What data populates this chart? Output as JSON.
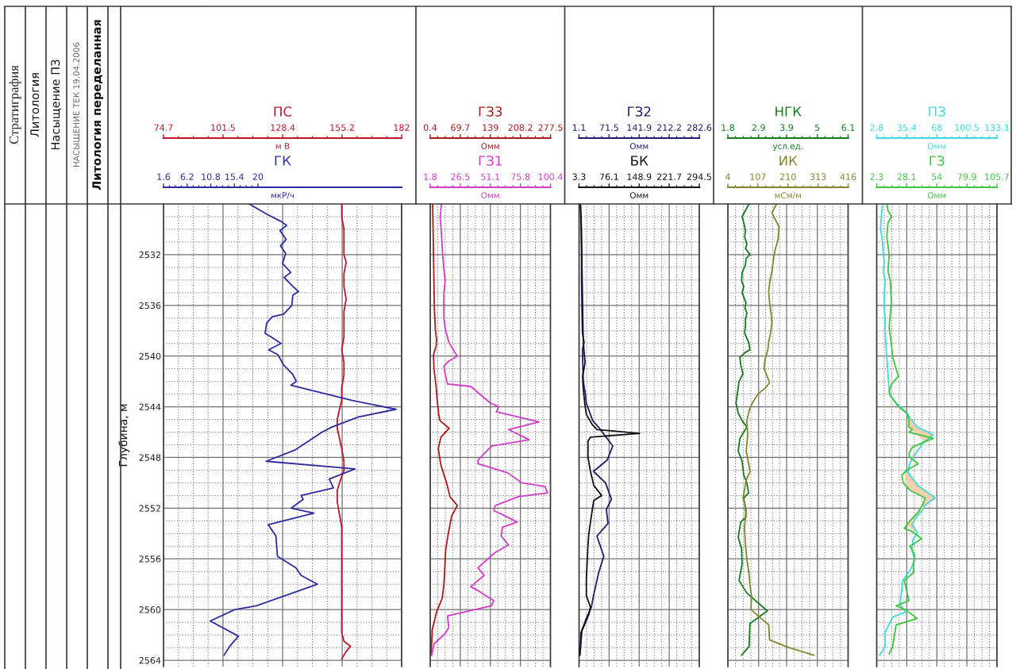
{
  "chart_data": [
    {
      "type": "line",
      "orientation": "horizontal",
      "annotations": [
        "Стратиграфия",
        "Литология",
        "Насыщение ПЗ",
        "НАСЫЩЕНИЕ ТЕК 19.04.2006",
        "Литология переделанная"
      ],
      "ylabel": "Глубина, м",
      "ylim": [
        2564.5,
        2528
      ],
      "yticks": [
        2532,
        2536,
        2540,
        2544,
        2548,
        2552,
        2556,
        2560,
        2564
      ],
      "xlim": [
        74.7,
        182
      ],
      "xticks": [
        74.7,
        101.5,
        128.4,
        155.2,
        182
      ],
      "xlabel": "м В",
      "x2lim": [
        1.6,
        48
      ],
      "x2ticks": [
        1.6,
        6.2,
        10.8,
        15.4,
        20
      ],
      "x2label": "мкР/ч",
      "grid": true,
      "series": [
        {
          "name": "ПС",
          "color": "#c0152b",
          "x": [
            2528.0,
            2529.0,
            2530.0,
            2531.0,
            2532.0,
            2532.6,
            2533.5,
            2534.5,
            2535.5,
            2536.5,
            2537.5,
            2538.5,
            2539.5,
            2540.5,
            2541.5,
            2542.5,
            2543.5,
            2544.2,
            2545.0,
            2545.7,
            2546.5,
            2547.3,
            2548.3,
            2549.0,
            2550.0,
            2550.6,
            2551.5,
            2552.5,
            2553.5,
            2554.5,
            2555.5,
            2556.5,
            2557.7,
            2558.7,
            2559.8,
            2561.0,
            2561.8,
            2562.5,
            2562.9,
            2563.3,
            2563.9
          ],
          "values": [
            155,
            155,
            156,
            156,
            156,
            157,
            156,
            156,
            157,
            156,
            156,
            156,
            155,
            156,
            156,
            155,
            155,
            154,
            153,
            153,
            154,
            155,
            156,
            156,
            154,
            153,
            153,
            154,
            155,
            155,
            155,
            155,
            155,
            155,
            155,
            155,
            155,
            156,
            159,
            157,
            155
          ]
        },
        {
          "name": "ГК",
          "color": "#2c2ca0",
          "axis": "x2",
          "x": [
            2528.0,
            2528.8,
            2529.4,
            2529.7,
            2530.1,
            2530.8,
            2531.3,
            2531.9,
            2532.7,
            2533.4,
            2533.8,
            2534.5,
            2534.9,
            2535.2,
            2536.0,
            2536.7,
            2536.9,
            2537.4,
            2538.2,
            2538.5,
            2539.0,
            2539.5,
            2539.9,
            2540.7,
            2541.4,
            2542.0,
            2542.3,
            2543.5,
            2544.2,
            2544.8,
            2545.6,
            2546.0,
            2547.4,
            2548.3,
            2548.9,
            2549.7,
            2550.4,
            2551.0,
            2551.3,
            2552.0,
            2552.4,
            2553.3,
            2554.2,
            2555.8,
            2556.7,
            2557.3,
            2558.0,
            2559.7,
            2560.0,
            2560.9,
            2562.1,
            2562.9,
            2563.6
          ],
          "values": [
            18.3,
            21.7,
            24.6,
            25.6,
            24.3,
            25.5,
            24.4,
            25.4,
            24.8,
            26.4,
            25.1,
            26.8,
            27.9,
            26.8,
            26.6,
            25.0,
            22.8,
            21.7,
            21.4,
            22.6,
            24.5,
            22.1,
            23.9,
            25.0,
            26.7,
            27.5,
            26.4,
            38.4,
            46.9,
            39.6,
            34.4,
            32.5,
            27.3,
            21.6,
            38.9,
            33.9,
            34.7,
            28.4,
            28.8,
            26.5,
            30.9,
            22.0,
            23.5,
            23.8,
            27.4,
            28.4,
            31.6,
            19.7,
            15.5,
            10.7,
            16.2,
            14.5,
            13.4
          ]
        }
      ]
    },
    {
      "type": "line",
      "orientation": "horizontal",
      "tick_labels": "x",
      "ylim": [
        2564.5,
        2528
      ],
      "yticks": [
        2532,
        2536,
        2540,
        2544,
        2548,
        2552,
        2556,
        2560,
        2564
      ],
      "xlim": [
        0.4,
        277.5
      ],
      "xticks": [
        0.4,
        69.7,
        139,
        208.2,
        277.5
      ],
      "xlabel": "Омм",
      "x2lim": [
        1.8,
        100.4
      ],
      "x2ticks": [
        1.8,
        26.5,
        51.1,
        75.8,
        100.4
      ],
      "x2label": "Омм",
      "grid": true,
      "series": [
        {
          "name": "ГЗ3",
          "color": "#a81c1c",
          "x": [
            2528.0,
            2529.9,
            2532.0,
            2534.1,
            2536.2,
            2537.8,
            2538.7,
            2539.2,
            2539.9,
            2541.0,
            2542.4,
            2543.3,
            2544.6,
            2545.1,
            2545.7,
            2546.4,
            2547.3,
            2548.6,
            2550.0,
            2551.1,
            2551.8,
            2552.6,
            2554.0,
            2555.3,
            2556.7,
            2558.0,
            2559.1,
            2560.2,
            2561.6,
            2562.5,
            2563.6
          ],
          "values": [
            6,
            7,
            8,
            9,
            10,
            12,
            15,
            14,
            8,
            9,
            14,
            16,
            20,
            23,
            44,
            25,
            19,
            25,
            38,
            46,
            63,
            50,
            42,
            36,
            34,
            32,
            28,
            15,
            5,
            4,
            2
          ]
        },
        {
          "name": "ГЗ1",
          "color": "#d23cc8",
          "axis": "x2",
          "x": [
            2528.0,
            2529.1,
            2530.3,
            2532.0,
            2533.1,
            2534.1,
            2535.1,
            2536.2,
            2537.0,
            2537.8,
            2538.9,
            2539.7,
            2540.0,
            2540.4,
            2540.8,
            2541.4,
            2542.2,
            2542.4,
            2543.7,
            2544.0,
            2544.4,
            2545.2,
            2545.8,
            2546.6,
            2547.1,
            2548.2,
            2548.5,
            2549.2,
            2550.0,
            2550.3,
            2550.8,
            2551.1,
            2551.8,
            2552.2,
            2552.5,
            2553.1,
            2553.5,
            2554.2,
            2554.9,
            2555.5,
            2556.7,
            2557.3,
            2558.2,
            2558.5,
            2559.3,
            2559.7,
            2560.5,
            2561.4,
            2561.9,
            2562.7,
            2563.6
          ],
          "values": [
            11,
            10,
            11,
            12,
            13,
            14,
            13,
            13,
            13,
            14,
            17,
            22,
            24,
            17,
            13,
            14,
            16,
            35,
            51,
            58,
            56,
            91,
            66,
            83,
            52,
            41,
            41,
            65,
            77,
            96,
            98,
            74,
            55,
            54,
            61,
            73,
            61,
            60,
            66,
            55,
            41,
            46,
            35,
            41,
            54,
            52,
            16,
            17,
            14,
            5,
            3
          ]
        }
      ]
    },
    {
      "type": "line",
      "orientation": "horizontal",
      "tick_labels": "x",
      "ylim": [
        2564.5,
        2528
      ],
      "yticks": [
        2532,
        2536,
        2540,
        2544,
        2548,
        2552,
        2556,
        2560,
        2564
      ],
      "xlim": [
        1.1,
        282.6
      ],
      "xticks": [
        1.1,
        71.5,
        141.9,
        212.2,
        282.6
      ],
      "xlabel": "Омм",
      "x2lim": [
        3.3,
        294.5
      ],
      "x2ticks": [
        3.3,
        76.1,
        148.9,
        221.7,
        294.5
      ],
      "x2label": "Омм",
      "grid": true,
      "series": [
        {
          "name": "ГЗ2",
          "color": "#1c1c6e",
          "x": [
            2528.0,
            2529.9,
            2532.0,
            2534.1,
            2536.2,
            2538.2,
            2538.9,
            2539.5,
            2540.7,
            2542.0,
            2543.0,
            2543.7,
            2545.1,
            2545.7,
            2547.1,
            2548.2,
            2549.1,
            2550.0,
            2551.3,
            2552.1,
            2553.2,
            2554.2,
            2555.8,
            2557.1,
            2558.9,
            2559.8,
            2560.7,
            2561.6,
            2562.9,
            2563.6
          ],
          "values": [
            4,
            6,
            7,
            7,
            8,
            9,
            13,
            9,
            10,
            11,
            16,
            18,
            33,
            49,
            80,
            67,
            35,
            63,
            77,
            65,
            69,
            43,
            59,
            47,
            35,
            30,
            18,
            8,
            5,
            3
          ]
        },
        {
          "name": "БК",
          "color": "#111111",
          "axis": "x2",
          "x": [
            2528.0,
            2529.9,
            2532.0,
            2534.1,
            2536.2,
            2538.2,
            2539.5,
            2540.5,
            2541.6,
            2542.4,
            2543.7,
            2544.6,
            2545.4,
            2545.8,
            2546.1,
            2546.4,
            2546.7,
            2548.0,
            2549.1,
            2550.2,
            2551.0,
            2551.4,
            2552.2,
            2553.1,
            2554.0,
            2554.9,
            2556.2,
            2557.6,
            2558.9,
            2559.8,
            2560.4,
            2561.4,
            2561.8,
            2562.5,
            2563.1,
            2563.6
          ],
          "values": [
            7,
            9,
            10,
            11,
            12,
            13,
            15,
            18,
            12,
            13,
            17,
            21,
            35,
            47,
            150,
            31,
            25,
            25,
            31,
            39,
            58,
            39,
            35,
            31,
            27,
            25,
            23,
            21,
            21,
            31,
            27,
            14,
            8,
            7,
            6,
            5
          ]
        }
      ]
    },
    {
      "type": "line",
      "orientation": "horizontal",
      "tick_labels": "x",
      "ylim": [
        2564.5,
        2528
      ],
      "yticks": [
        2532,
        2536,
        2540,
        2544,
        2548,
        2552,
        2556,
        2560,
        2564
      ],
      "xlim": [
        1.8,
        6.1
      ],
      "xticks": [
        1.8,
        2.9,
        3.9,
        5,
        6.1
      ],
      "xlabel": "усл.ед.",
      "x2lim": [
        4,
        416
      ],
      "x2ticks": [
        4,
        107,
        210,
        313,
        416
      ],
      "x2label": "мСм/м",
      "grid": true,
      "series": [
        {
          "name": "НГК",
          "color": "#137a1e",
          "x": [
            2528.0,
            2528.3,
            2529.0,
            2529.5,
            2530.1,
            2530.6,
            2531.2,
            2531.5,
            2532.0,
            2532.3,
            2532.8,
            2533.4,
            2534.1,
            2534.5,
            2535.0,
            2535.8,
            2536.2,
            2536.6,
            2537.1,
            2537.6,
            2538.2,
            2538.9,
            2539.5,
            2539.7,
            2540.1,
            2540.7,
            2541.4,
            2542.0,
            2542.8,
            2543.7,
            2544.5,
            2545.1,
            2545.6,
            2546.5,
            2547.5,
            2548.3,
            2549.4,
            2550.0,
            2550.8,
            2551.2,
            2552.1,
            2552.7,
            2553.1,
            2554.3,
            2555.2,
            2556.4,
            2557.7,
            2558.7,
            2560.1,
            2561.1,
            2562.9,
            2563.6
          ],
          "values": [
            2.56,
            2.48,
            2.31,
            2.37,
            2.43,
            2.4,
            2.48,
            2.43,
            2.59,
            2.45,
            2.43,
            2.31,
            2.29,
            2.37,
            2.31,
            2.45,
            2.41,
            2.48,
            2.43,
            2.43,
            2.4,
            2.54,
            2.59,
            2.43,
            2.23,
            2.26,
            2.34,
            2.2,
            2.15,
            2.09,
            2.17,
            2.31,
            2.48,
            2.23,
            2.17,
            2.31,
            2.37,
            2.48,
            2.54,
            2.37,
            2.43,
            2.45,
            2.26,
            2.17,
            2.29,
            2.31,
            2.2,
            2.48,
            3.21,
            2.59,
            2.56,
            2.29
          ]
        },
        {
          "name": "ИК",
          "color": "#84842c",
          "axis": "x2",
          "x": [
            2528.0,
            2528.7,
            2529.8,
            2530.8,
            2531.6,
            2532.4,
            2533.3,
            2534.1,
            2534.9,
            2535.8,
            2536.6,
            2537.4,
            2538.2,
            2538.9,
            2539.5,
            2540.3,
            2541.0,
            2541.6,
            2542.1,
            2542.5,
            2543.0,
            2543.7,
            2544.3,
            2545.1,
            2546.2,
            2547.5,
            2549.1,
            2549.8,
            2551.2,
            2552.1,
            2553.5,
            2554.8,
            2556.0,
            2557.3,
            2558.1,
            2558.9,
            2560.0,
            2560.8,
            2561.2,
            2562.4,
            2563.0,
            2563.6
          ],
          "values": [
            171,
            155,
            179,
            176,
            166,
            160,
            155,
            148,
            144,
            147,
            152,
            155,
            150,
            144,
            141,
            131,
            128,
            139,
            147,
            133,
            107,
            88,
            77,
            69,
            72,
            67,
            80,
            67,
            56,
            67,
            61,
            64,
            69,
            77,
            80,
            85,
            83,
            123,
            144,
            147,
            214,
            299
          ]
        }
      ]
    },
    {
      "type": "line",
      "orientation": "horizontal",
      "tick_labels": "x",
      "ylim": [
        2564.5,
        2528
      ],
      "yticks": [
        2532,
        2536,
        2540,
        2544,
        2548,
        2552,
        2556,
        2560,
        2564
      ],
      "xlim": [
        2.8,
        133.1
      ],
      "xticks": [
        2.8,
        35.4,
        68,
        100.5,
        133.1
      ],
      "xlabel": "Омм",
      "x2lim": [
        2.3,
        105.7
      ],
      "x2ticks": [
        2.3,
        28.1,
        54,
        79.9,
        105.7
      ],
      "x2label": "Омм",
      "grid": true,
      "series": [
        {
          "name": "ПЗ",
          "color": "#3fdbe0",
          "x": [
            2528.0,
            2528.9,
            2529.9,
            2531.0,
            2532.0,
            2532.6,
            2533.3,
            2534.1,
            2535.1,
            2536.2,
            2537.2,
            2538.2,
            2539.3,
            2540.3,
            2541.4,
            2542.4,
            2543.1,
            2543.8,
            2544.5,
            2545.0,
            2545.6,
            2546.2,
            2546.8,
            2548.0,
            2548.6,
            2549.2,
            2550.2,
            2550.8,
            2551.2,
            2551.8,
            2552.2,
            2552.7,
            2553.3,
            2553.9,
            2554.5,
            2555.3,
            2556.1,
            2556.9,
            2557.7,
            2558.5,
            2559.6,
            2560.2,
            2560.6,
            2561.8,
            2562.9,
            2563.6
          ],
          "values": [
            9,
            8,
            7,
            9,
            10,
            11,
            10,
            12,
            11,
            11,
            12,
            12,
            13,
            14,
            15,
            16,
            17,
            25,
            36,
            40,
            47,
            64,
            54,
            42,
            38,
            37,
            47,
            59,
            66,
            55,
            52,
            46,
            41,
            47,
            42,
            41,
            44,
            39,
            31,
            30,
            28,
            34,
            20,
            12,
            12,
            6
          ],
          "lower": [
            null,
            null,
            null,
            null,
            null,
            null,
            null,
            null,
            null,
            null,
            null,
            null,
            null,
            null,
            null,
            null,
            null,
            null,
            36,
            38,
            37,
            47,
            54,
            39,
            null,
            33,
            34,
            44,
            55,
            51,
            48,
            42,
            35,
            45,
            null,
            null,
            null,
            null,
            null,
            null,
            null,
            null,
            null,
            null,
            null,
            null
          ],
          "upper": [
            null,
            null,
            null,
            null,
            null,
            null,
            null,
            null,
            null,
            null,
            null,
            null,
            null,
            null,
            null,
            null,
            null,
            null,
            36,
            40,
            47,
            64,
            54,
            42,
            null,
            37,
            47,
            59,
            66,
            55,
            52,
            46,
            41,
            47,
            null,
            null,
            null,
            null,
            null,
            null,
            null,
            null,
            null,
            null,
            null,
            null
          ]
        },
        {
          "name": "ГЗ",
          "color": "#3fc63f",
          "axis": "x2",
          "x": [
            2528.0,
            2528.5,
            2529.0,
            2529.5,
            2530.6,
            2532.0,
            2533.3,
            2534.1,
            2535.8,
            2536.6,
            2537.8,
            2539.1,
            2540.1,
            2541.6,
            2542.2,
            2542.8,
            2543.1,
            2544.0,
            2544.5,
            2545.0,
            2545.6,
            2545.8,
            2546.0,
            2546.5,
            2546.9,
            2547.2,
            2547.7,
            2548.0,
            2548.5,
            2549.0,
            2549.4,
            2550.0,
            2550.6,
            2551.2,
            2551.7,
            2552.3,
            2553.1,
            2553.6,
            2553.8,
            2554.4,
            2555.0,
            2555.7,
            2556.3,
            2557.1,
            2557.7,
            2559.3,
            2559.7,
            2560.0,
            2560.7,
            2561.2,
            2562.9,
            2563.5
          ],
          "values": [
            11,
            12,
            15,
            12,
            11,
            13,
            12,
            14,
            15,
            14,
            13,
            15,
            16,
            21,
            15,
            13,
            14,
            21,
            28,
            30,
            30,
            33,
            30,
            51,
            40,
            33,
            30,
            31,
            38,
            28,
            24,
            25,
            31,
            44,
            42,
            38,
            30,
            26,
            32,
            41,
            31,
            35,
            34,
            34,
            26,
            30,
            19,
            27,
            37,
            19,
            16,
            13
          ]
        }
      ]
    }
  ]
}
